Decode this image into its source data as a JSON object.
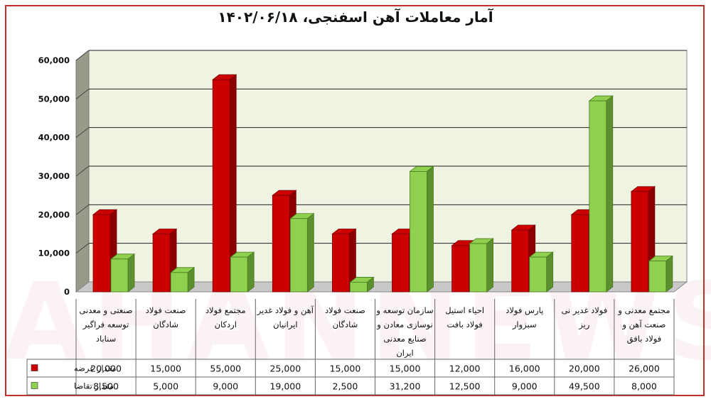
{
  "title": "آمار معاملات آهن اسفنجی، ۱۴۰۲/۰۶/۱۸",
  "watermark": "AHANNEWS",
  "colors": {
    "offer": "#cc0000",
    "demand": "#8fd14f",
    "plot_bg": "#eef3e2",
    "frame": "#c0302b"
  },
  "chart_data": {
    "type": "bar",
    "title": "آمار معاملات آهن اسفنجی، ۱۴۰۲/۰۶/۱۸",
    "categories": [
      [
        "صنعتی و معدنی",
        "توسعه فراگیر",
        "سناباد"
      ],
      [
        "صنعت فولاد",
        "شادگان"
      ],
      [
        "مجتمع فولاد",
        "اردکان"
      ],
      [
        "آهن و فولاد غدیر",
        "ایرانیان"
      ],
      [
        "صنعت فولاد",
        "شادگان"
      ],
      [
        "سازمان توسعه و",
        "نوسازی معادن و",
        "صنایع معدنی",
        "ایران"
      ],
      [
        "احیاء استیل",
        "فولاد بافت"
      ],
      [
        "پارس فولاد",
        "سبزوار"
      ],
      [
        "فولاد غدیر نی",
        "ریز"
      ],
      [
        "مجتمع معدنی و",
        "صنعت آهن و",
        "فولاد بافق"
      ]
    ],
    "series": [
      {
        "name": "مقدار عرضه",
        "color": "#cc0000",
        "values": [
          20000,
          15000,
          55000,
          25000,
          15000,
          15000,
          12000,
          16000,
          20000,
          26000
        ],
        "labels": [
          "20,000",
          "15,000",
          "55,000",
          "25,000",
          "15,000",
          "15,000",
          "12,000",
          "16,000",
          "20,000",
          "26,000"
        ]
      },
      {
        "name": "مقدار تقاضا",
        "color": "#8fd14f",
        "values": [
          8500,
          5000,
          9000,
          19000,
          2500,
          31200,
          12500,
          9000,
          49500,
          8000
        ],
        "labels": [
          "8,500",
          "5,000",
          "9,000",
          "19,000",
          "2,500",
          "31,200",
          "12,500",
          "9,000",
          "49,500",
          "8,000"
        ]
      }
    ],
    "ylim": [
      0,
      60000
    ],
    "yticks": [
      "0",
      "10,000",
      "20,000",
      "30,000",
      "40,000",
      "50,000",
      "60,000"
    ],
    "grid": true,
    "legend": "bottom-left (in data table)"
  }
}
